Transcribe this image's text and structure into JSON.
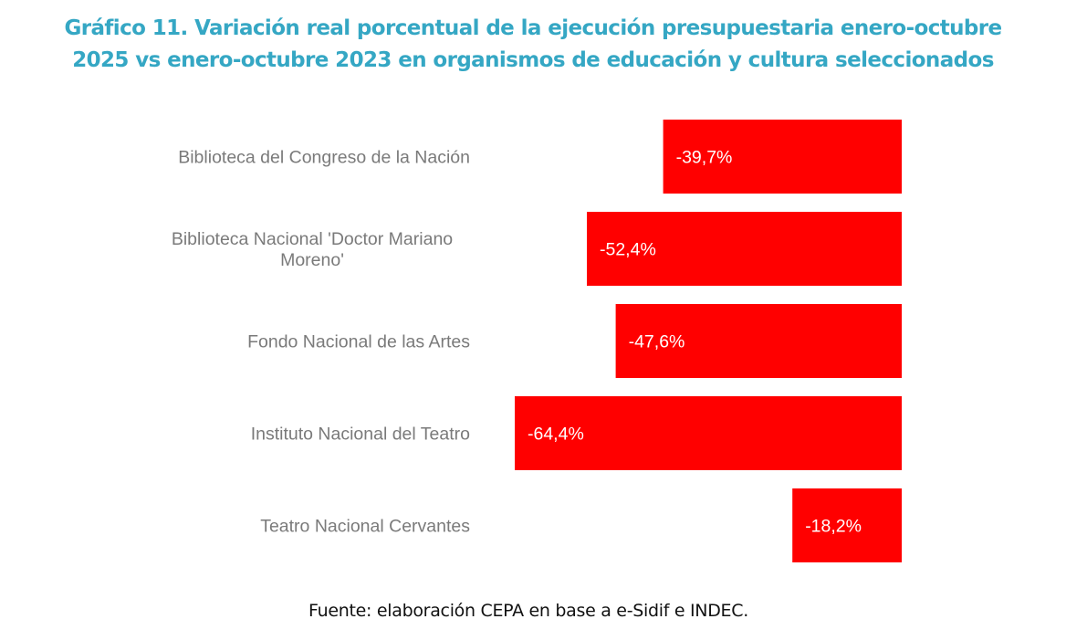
{
  "chart_data": {
    "type": "bar",
    "orientation": "horizontal",
    "title": "Gráfico 11. Variación real porcentual de la ejecución presupuestaria enero-octubre 2025 vs enero-octubre 2023 en organismos de educación y cultura seleccionados",
    "title_lines": [
      "Gráfico 11. Variación real porcentual de la ejecución presupuestaria enero-octubre",
      "2025 vs enero-octubre 2023 en organismos de educación y cultura seleccionados"
    ],
    "categories": [
      "Biblioteca del Congreso de la Nación",
      "Biblioteca Nacional 'Doctor Mariano Moreno'",
      "Fondo Nacional de las Artes",
      "Instituto Nacional del Teatro",
      "Teatro Nacional Cervantes"
    ],
    "category_lines": [
      [
        "Biblioteca del Congreso de la Nación"
      ],
      [
        "Biblioteca Nacional 'Doctor Mariano",
        "Moreno'"
      ],
      [
        "Fondo Nacional de las Artes"
      ],
      [
        "Instituto Nacional del Teatro"
      ],
      [
        "Teatro Nacional Cervantes"
      ]
    ],
    "values": [
      -39.7,
      -52.4,
      -47.6,
      -64.4,
      -18.2
    ],
    "data_labels": [
      "-39,7%",
      "-52,4%",
      "-47,6%",
      "-64,4%",
      "-18,2%"
    ],
    "xlabel": "",
    "ylabel": "",
    "xlim": [
      -64.4,
      0
    ],
    "grid": false,
    "legend": "none",
    "bar_color": "#ff0000",
    "source": "Fuente: elaboración CEPA en base a e-Sidif e INDEC."
  },
  "colors": {
    "title": "#35a7c4",
    "bar": "#ff0000",
    "category_text": "#7a7a7a",
    "value_text": "#ffffff"
  }
}
